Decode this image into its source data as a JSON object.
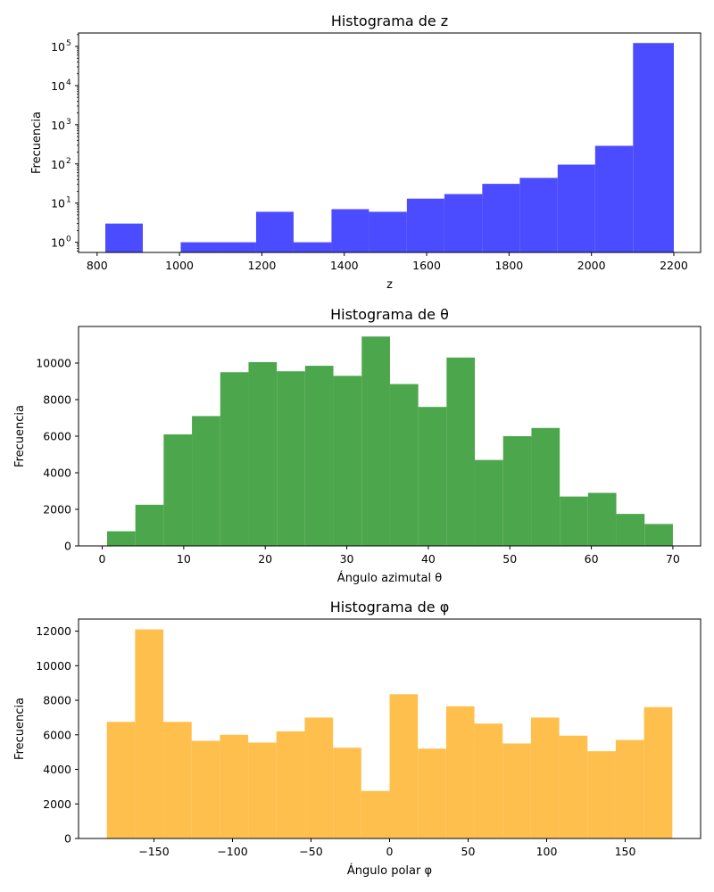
{
  "chart_data": [
    {
      "type": "bar",
      "title": "Histograma de z",
      "xlabel": "z",
      "ylabel": "Frecuencia",
      "yscale": "log",
      "color": "#4b4bff",
      "xlim": [
        755,
        2265
      ],
      "ylim": [
        0.55,
        220000
      ],
      "xticks": [
        800,
        1000,
        1200,
        1400,
        1600,
        1800,
        2000,
        2200
      ],
      "xtick_labels": [
        "800",
        "1000",
        "1200",
        "1400",
        "1600",
        "1800",
        "2000",
        "2200"
      ],
      "yticks": [
        1,
        10,
        100,
        1000,
        10000,
        100000
      ],
      "ytick_labels": [
        "10",
        "10",
        "10",
        "10",
        "10",
        "10"
      ],
      "ytick_exponents": [
        "0",
        "1",
        "2",
        "3",
        "4",
        "5"
      ],
      "bin_edges": [
        820,
        911,
        1003,
        1094,
        1186,
        1277,
        1369,
        1460,
        1552,
        1643,
        1735,
        1826,
        1918,
        2009,
        2101,
        2200
      ],
      "values": [
        3,
        0,
        1,
        1,
        6,
        1,
        7,
        6,
        13,
        17,
        31,
        44,
        96,
        290,
        122000
      ]
    },
    {
      "type": "bar",
      "title": "Histograma de θ",
      "xlabel": "Ángulo azimutal θ",
      "ylabel": "Frecuencia",
      "yscale": "linear",
      "color": "#4ca64c",
      "xlim": [
        -2.9,
        73.4
      ],
      "ylim": [
        0,
        12000
      ],
      "xticks": [
        0,
        10,
        20,
        30,
        40,
        50,
        60,
        70
      ],
      "xtick_labels": [
        "0",
        "10",
        "20",
        "30",
        "40",
        "50",
        "60",
        "70"
      ],
      "yticks": [
        0,
        2000,
        4000,
        6000,
        8000,
        10000
      ],
      "ytick_labels": [
        "0",
        "2000",
        "4000",
        "6000",
        "8000",
        "10000"
      ],
      "bin_edges": [
        0.6,
        4.07,
        7.54,
        11.01,
        14.48,
        17.95,
        21.42,
        24.89,
        28.36,
        31.83,
        35.3,
        38.77,
        42.24,
        45.71,
        49.18,
        52.65,
        56.12,
        59.59,
        63.06,
        66.53,
        70.0
      ],
      "values": [
        800,
        2250,
        6100,
        7100,
        9500,
        10050,
        9550,
        9850,
        9300,
        11450,
        8850,
        7600,
        10300,
        4700,
        6000,
        6450,
        2700,
        2900,
        1750,
        1200
      ]
    },
    {
      "type": "bar",
      "title": "Histograma de φ",
      "xlabel": "Ángulo polar φ",
      "ylabel": "Frecuencia",
      "yscale": "linear",
      "color": "#ffbf4d",
      "xlim": [
        -198,
        198
      ],
      "ylim": [
        0,
        12700
      ],
      "xticks": [
        -150,
        -100,
        -50,
        0,
        50,
        100,
        150
      ],
      "xtick_labels": [
        "−150",
        "−100",
        "−50",
        "0",
        "50",
        "100",
        "150"
      ],
      "yticks": [
        0,
        2000,
        4000,
        6000,
        8000,
        10000,
        12000
      ],
      "ytick_labels": [
        "0",
        "2000",
        "4000",
        "6000",
        "8000",
        "10000",
        "12000"
      ],
      "bin_edges": [
        -180,
        -162,
        -144,
        -126,
        -108,
        -90,
        -72,
        -54,
        -36,
        -18,
        0,
        18,
        36,
        54,
        72,
        90,
        108,
        126,
        144,
        162,
        180
      ],
      "values": [
        6750,
        12100,
        6750,
        5650,
        6000,
        5550,
        6200,
        7000,
        5250,
        2750,
        8350,
        5200,
        7650,
        6650,
        5500,
        7000,
        5950,
        5050,
        5700,
        7600
      ]
    }
  ]
}
